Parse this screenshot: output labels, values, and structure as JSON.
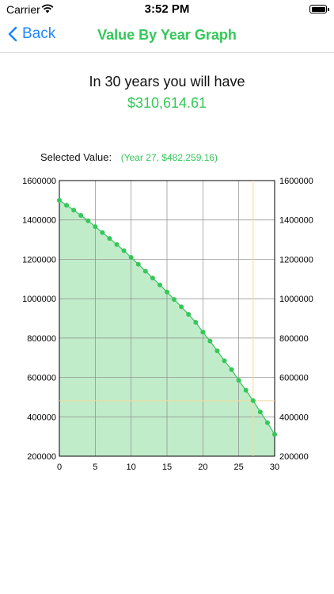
{
  "status_bar": {
    "carrier": "Carrier",
    "time": "3:52 PM"
  },
  "nav": {
    "back_label": "Back",
    "title": "Value By Year Graph"
  },
  "summary": {
    "headline": "In 30 years you will have",
    "amount": "$310,614.61"
  },
  "selected": {
    "label": "Selected Value:",
    "value": "(Year 27, $482,259.16)",
    "year": 27,
    "amount": 482259.16
  },
  "colors": {
    "accent": "#35c759",
    "back": "#1e88ff",
    "fill": "#c1ecca",
    "grid": "#8a8a8a",
    "highlight": "#f4d79a"
  },
  "chart_data": {
    "type": "area",
    "x": [
      0,
      1,
      2,
      3,
      4,
      5,
      6,
      7,
      8,
      9,
      10,
      11,
      12,
      13,
      14,
      15,
      16,
      17,
      18,
      19,
      20,
      21,
      22,
      23,
      24,
      25,
      26,
      27,
      28,
      29,
      30
    ],
    "values": [
      1500000,
      1475000,
      1450000,
      1423000,
      1396000,
      1366000,
      1336000,
      1306000,
      1275000,
      1244000,
      1210000,
      1175000,
      1140000,
      1105000,
      1070000,
      1034000,
      996000,
      959000,
      920000,
      880000,
      830000,
      785000,
      735000,
      685000,
      640000,
      585000,
      535000,
      482259.16,
      425000,
      370000,
      310614.61
    ],
    "xlim": [
      0,
      30
    ],
    "ylim": [
      200000,
      1600000
    ],
    "x_ticks": [
      0,
      5,
      10,
      15,
      20,
      25,
      30
    ],
    "y_ticks": [
      200000,
      400000,
      600000,
      800000,
      1000000,
      1200000,
      1400000,
      1600000
    ],
    "grid": true,
    "highlight": {
      "x": 27,
      "y": 482259.16
    }
  }
}
